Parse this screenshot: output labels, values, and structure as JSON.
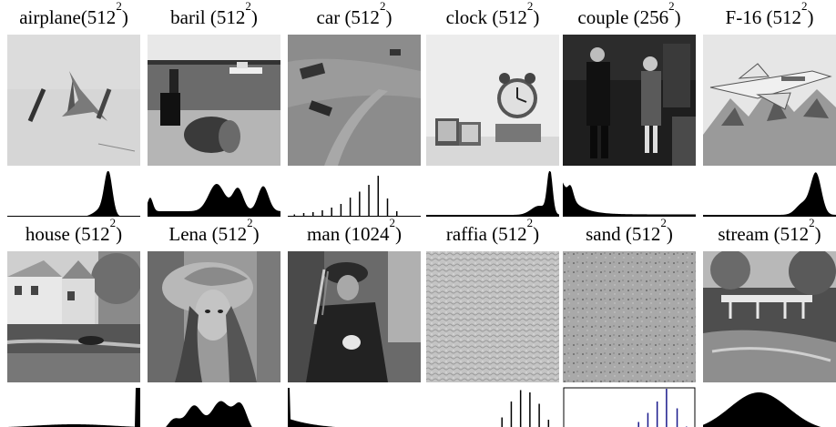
{
  "panels": [
    {
      "name": "airplane",
      "size": "(512",
      "exp": "2",
      "close": ")",
      "hist": "airplane-hist"
    },
    {
      "name": "baril ",
      "size": "(512",
      "exp": "2",
      "close": ")",
      "hist": "baril-hist"
    },
    {
      "name": "car ",
      "size": "(512",
      "exp": "2",
      "close": ")",
      "hist": "car-hist"
    },
    {
      "name": "clock ",
      "size": "(512",
      "exp": "2",
      "close": ")",
      "hist": "clock-hist"
    },
    {
      "name": "couple ",
      "size": "(256",
      "exp": "2",
      "close": ")",
      "hist": "couple-hist"
    },
    {
      "name": "F-16 ",
      "size": "(512",
      "exp": "2",
      "close": ")",
      "hist": "f16-hist"
    },
    {
      "name": "house ",
      "size": "(512",
      "exp": "2",
      "close": ")",
      "hist": "house-hist"
    },
    {
      "name": "Lena ",
      "size": "(512",
      "exp": "2",
      "close": ")",
      "hist": "lena-hist"
    },
    {
      "name": "man ",
      "size": "(1024",
      "exp": "2",
      "close": ")",
      "hist": "man-hist"
    },
    {
      "name": "raffia ",
      "size": "(512",
      "exp": "2",
      "close": ")",
      "hist": "raffia-hist"
    },
    {
      "name": "sand ",
      "size": "(512",
      "exp": "2",
      "close": ")",
      "hist": "sand-hist"
    },
    {
      "name": "stream ",
      "size": "(512",
      "exp": "2",
      "close": ")",
      "hist": "stream-hist"
    }
  ],
  "colors": {
    "hist_fill": "#000000",
    "sand_axis": "#000000",
    "sand_bars": "#1a1a8c"
  }
}
